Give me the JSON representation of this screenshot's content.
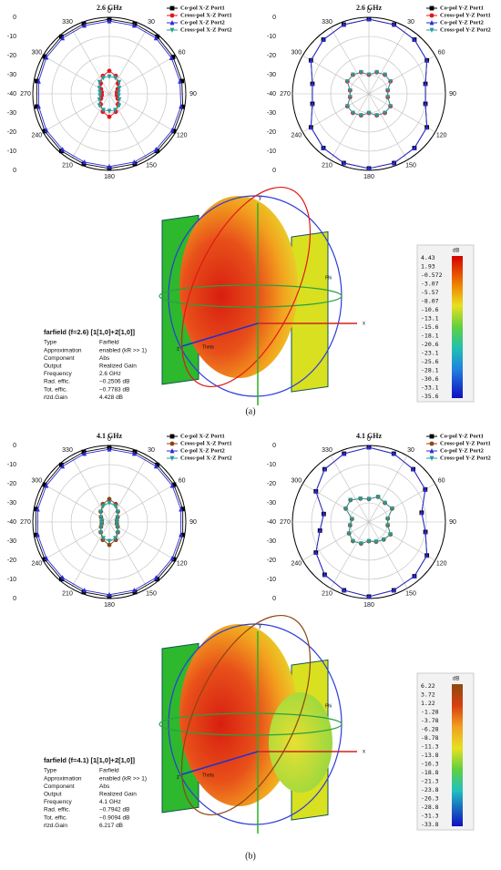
{
  "chart_data": [
    {
      "type": "polar",
      "title": "2.6 GHz",
      "theta": [
        0,
        20,
        40,
        60,
        80,
        100,
        120,
        140,
        160,
        180,
        200,
        220,
        240,
        260,
        280,
        300,
        320,
        340
      ],
      "rlim": [
        -40,
        0
      ],
      "rticks": [
        -40,
        -30,
        -20,
        -10,
        0
      ],
      "thetaticks": [
        0,
        30,
        60,
        90,
        120,
        150,
        180,
        210,
        240,
        270,
        300,
        330
      ],
      "series": [
        {
          "name": "Co-pol X-Z Port1",
          "color": "#000000",
          "marker": "square",
          "values": [
            -1,
            -1,
            -1,
            -1.5,
            -1.5,
            -1,
            -1,
            -1,
            -1,
            -1,
            -1,
            -1,
            -1,
            -1.5,
            -1.5,
            -1,
            -1,
            -1
          ]
        },
        {
          "name": "Cross-pol X-Z Port1",
          "color": "#e8141a",
          "marker": "circle",
          "values": [
            -28,
            -30,
            -33,
            -35,
            -36,
            -36,
            -35,
            -33,
            -30,
            -28,
            -30,
            -33,
            -35,
            -36,
            -36,
            -35,
            -33,
            -30
          ]
        },
        {
          "name": "Co-pol X-Z Port2",
          "color": "#2a2ad8",
          "marker": "triangle-up",
          "values": [
            -2,
            -2,
            -2,
            -2.5,
            -2.5,
            -2,
            -2,
            -2,
            -2,
            -2,
            -2,
            -2,
            -2,
            -2.5,
            -2.5,
            -2,
            -2,
            -2
          ]
        },
        {
          "name": "Cross-pol X-Z Port2",
          "color": "#2a9a9a",
          "marker": "triangle-down",
          "values": [
            -31,
            -31,
            -32,
            -34,
            -35,
            -35,
            -34,
            -32,
            -31,
            -31,
            -31,
            -32,
            -34,
            -35,
            -35,
            -34,
            -32,
            -31
          ]
        }
      ]
    },
    {
      "type": "polar",
      "title": "2.6 GHz",
      "theta": [
        0,
        20,
        40,
        60,
        80,
        100,
        120,
        140,
        160,
        180,
        200,
        220,
        240,
        260,
        280,
        300,
        320,
        340
      ],
      "rlim": [
        -40,
        0
      ],
      "rticks": [
        -40,
        -30,
        -20,
        -10,
        0
      ],
      "thetaticks": [
        0,
        30,
        60,
        90,
        120,
        150,
        180,
        210,
        240,
        270,
        300,
        330
      ],
      "series": [
        {
          "name": "Co-pol Y-Z Port1",
          "color": "#000000",
          "marker": "square",
          "values": [
            -1,
            -1.5,
            -3,
            -5,
            -10,
            -10,
            -5,
            -3,
            -1.5,
            -1,
            -1.5,
            -3,
            -5,
            -10,
            -10,
            -5,
            -3,
            -1.5
          ]
        },
        {
          "name": "Cross-pol Y-Z Port1",
          "color": "#e8141a",
          "marker": "circle",
          "values": [
            -30,
            -28,
            -27,
            -27,
            -30,
            -30,
            -27,
            -27,
            -28,
            -30,
            -28,
            -27,
            -27,
            -30,
            -30,
            -27,
            -27,
            -28
          ]
        },
        {
          "name": "Co-pol Y-Z Port2",
          "color": "#2a2ad8",
          "marker": "triangle-up",
          "values": [
            -1,
            -1.5,
            -3,
            -5,
            -10,
            -10,
            -5,
            -3,
            -1.5,
            -1,
            -1.5,
            -3,
            -5,
            -10,
            -10,
            -5,
            -3,
            -1.5
          ]
        },
        {
          "name": "Cross-pol Y-Z Port2",
          "color": "#2a9a9a",
          "marker": "triangle-down",
          "values": [
            -30,
            -28,
            -27,
            -27,
            -30,
            -30,
            -27,
            -27,
            -28,
            -30,
            -28,
            -27,
            -27,
            -30,
            -30,
            -27,
            -27,
            -28
          ]
        }
      ]
    },
    {
      "type": "polar",
      "title": "4.1 GHz",
      "theta": [
        0,
        20,
        40,
        60,
        80,
        100,
        120,
        140,
        160,
        180,
        200,
        220,
        240,
        260,
        280,
        300,
        320,
        340
      ],
      "rlim": [
        -40,
        0
      ],
      "rticks": [
        -40,
        -30,
        -20,
        -10,
        0
      ],
      "thetaticks": [
        0,
        30,
        60,
        90,
        120,
        150,
        180,
        210,
        240,
        270,
        300,
        330
      ],
      "series": [
        {
          "name": "Co-pol X-Z Port1",
          "color": "#000000",
          "marker": "square",
          "values": [
            -1,
            -1,
            -1,
            -1,
            -1,
            -1,
            -1,
            -1,
            -1,
            -1,
            -1,
            -1,
            -1,
            -1,
            -1,
            -1,
            -1,
            -1
          ]
        },
        {
          "name": "Cross-pol X-Z Port1",
          "color": "#8b4513",
          "marker": "circle",
          "values": [
            -28,
            -30,
            -33,
            -35,
            -36,
            -36,
            -35,
            -33,
            -30,
            -28,
            -30,
            -33,
            -35,
            -36,
            -36,
            -35,
            -33,
            -30
          ]
        },
        {
          "name": "Co-pol X-Z Port2",
          "color": "#2a2ad8",
          "marker": "triangle-up",
          "values": [
            -2,
            -2,
            -2,
            -2,
            -2,
            -2,
            -2,
            -2,
            -2,
            -2,
            -2,
            -2,
            -2,
            -2,
            -2,
            -2,
            -2,
            -2
          ]
        },
        {
          "name": "Cross-pol X-Z Port2",
          "color": "#2a9a9a",
          "marker": "triangle-down",
          "values": [
            -30,
            -31,
            -33,
            -35,
            -36,
            -36,
            -35,
            -33,
            -31,
            -30,
            -31,
            -33,
            -35,
            -36,
            -36,
            -35,
            -33,
            -31
          ]
        }
      ]
    },
    {
      "type": "polar",
      "title": "4.1 GHz",
      "theta": [
        0,
        20,
        40,
        60,
        80,
        100,
        120,
        140,
        160,
        180,
        200,
        220,
        240,
        260,
        280,
        300,
        320,
        340
      ],
      "rlim": [
        -40,
        0
      ],
      "rticks": [
        -40,
        -30,
        -20,
        -10,
        0
      ],
      "thetaticks": [
        0,
        30,
        60,
        90,
        120,
        150,
        180,
        210,
        240,
        270,
        300,
        330
      ],
      "series": [
        {
          "name": "Co-pol Y-Z Port1",
          "color": "#000000",
          "marker": "square",
          "values": [
            -1,
            -2,
            -4,
            -6,
            -12,
            -10,
            -5,
            -3,
            -2,
            -1,
            -2,
            -4,
            -8,
            -14,
            -16,
            -8,
            -4,
            -2
          ]
        },
        {
          "name": "Cross-pol Y-Z Port1",
          "color": "#8b4513",
          "marker": "circle",
          "values": [
            -28,
            -26,
            -27,
            -26,
            -30,
            -30,
            -27,
            -28,
            -29,
            -30,
            -28,
            -27,
            -28,
            -30,
            -31,
            -26,
            -25,
            -27
          ]
        },
        {
          "name": "Co-pol Y-Z Port2",
          "color": "#2a2ad8",
          "marker": "triangle-up",
          "values": [
            -1,
            -2,
            -4,
            -6,
            -12,
            -10,
            -5,
            -3,
            -2,
            -1,
            -2,
            -4,
            -8,
            -14,
            -16,
            -8,
            -4,
            -2
          ]
        },
        {
          "name": "Cross-pol Y-Z Port2",
          "color": "#2a9a9a",
          "marker": "triangle-down",
          "values": [
            -28,
            -26,
            -27,
            -26,
            -30,
            -30,
            -27,
            -28,
            -29,
            -30,
            -28,
            -27,
            -28,
            -30,
            -31,
            -26,
            -25,
            -27
          ]
        }
      ]
    }
  ],
  "panels": [
    {
      "farfield_title": "farfield (f=2.6) [1[1,0]+2[1,0]]",
      "rows": [
        [
          "Type",
          "Farfield"
        ],
        [
          "Approximation",
          "enabled (kR >> 1)"
        ],
        [
          "Component",
          "Abs"
        ],
        [
          "Output",
          "Realized Gain"
        ],
        [
          "Frequency",
          "2.6 GHz"
        ],
        [
          "Rad. effic.",
          "−0.2506 dB"
        ],
        [
          "Tot. effic.",
          "−0.7783 dB"
        ],
        [
          "rlzd.Gain",
          "4.428 dB"
        ]
      ],
      "colorbar_unit": "dB",
      "colorbar_ticks": [
        4.43,
        1.93,
        -0.572,
        -3.07,
        -5.57,
        -8.07,
        -10.6,
        -13.1,
        -15.6,
        -18.1,
        -20.6,
        -23.1,
        -25.6,
        -28.1,
        -30.6,
        -33.1,
        -35.6
      ],
      "caption": "(a)"
    },
    {
      "farfield_title": "farfield (f=4.1) [1[1,0]+2[1,0]]",
      "rows": [
        [
          "Type",
          "Farfield"
        ],
        [
          "Approximation",
          "enabled (kR >> 1)"
        ],
        [
          "Component",
          "Abs"
        ],
        [
          "Output",
          "Realized Gain"
        ],
        [
          "Frequency",
          "4.1 GHz"
        ],
        [
          "Rad. effic.",
          "−0.7942 dB"
        ],
        [
          "Tot. effic.",
          "−0.9094 dB"
        ],
        [
          "rlzd.Gain",
          "6.217 dB"
        ]
      ],
      "colorbar_unit": "dB",
      "colorbar_ticks": [
        6.22,
        3.72,
        1.22,
        -1.28,
        -3.78,
        -6.28,
        -8.78,
        -11.3,
        -13.8,
        -16.3,
        -18.8,
        -21.3,
        -23.8,
        -26.3,
        -28.8,
        -31.3,
        -33.8
      ],
      "caption": "(b)"
    }
  ],
  "render_labels": {
    "x": "x",
    "y": "y",
    "z": "z",
    "phi": "Phi",
    "theta": "Theta"
  }
}
